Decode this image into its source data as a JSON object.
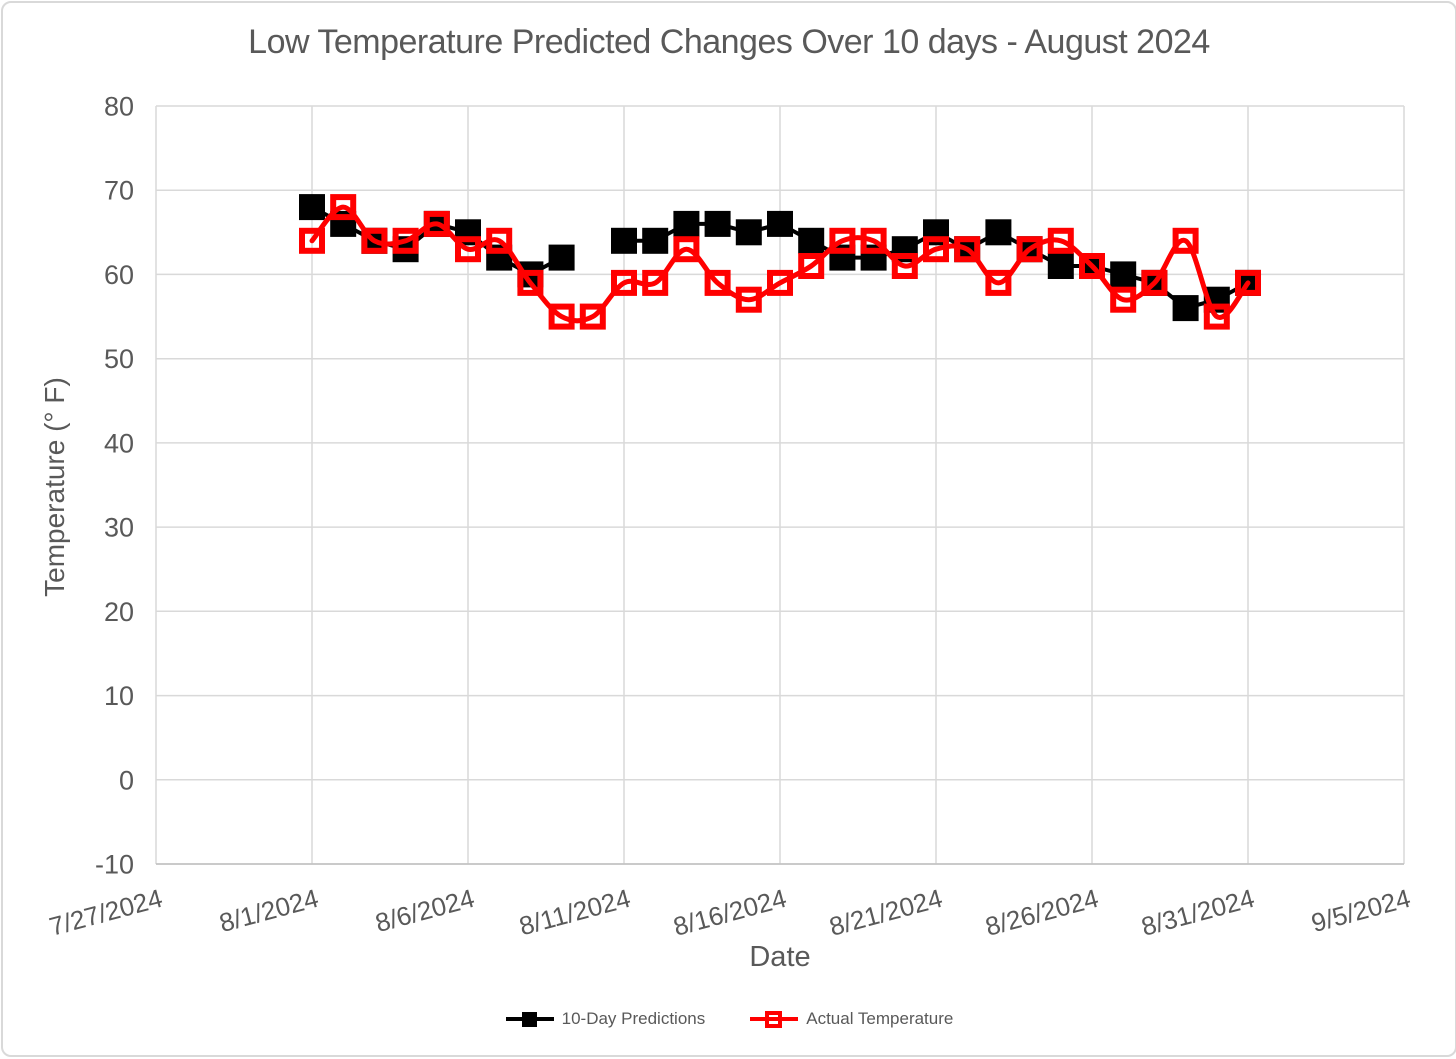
{
  "colors": {
    "background": "#FFFFFF",
    "frame_border": "#D9D9D9",
    "text": "#595959",
    "gridline": "#D9D9D9",
    "axis_line": "#BFBFBF",
    "series_predictions": "#000000",
    "series_actual": "#FF0000"
  },
  "chart_data": {
    "type": "line",
    "title": "Low Temperature Predicted Changes Over 10 days - August 2024",
    "xlabel": "Date",
    "ylabel": "Temperature (° F)",
    "grid": true,
    "legend_position": "bottom",
    "ylim": [
      -10,
      80
    ],
    "y_ticks": [
      80,
      70,
      60,
      50,
      40,
      30,
      20,
      10,
      0,
      -10
    ],
    "x_min": "7/27/2024",
    "x_max": "9/5/2024",
    "x_tick_labels": [
      "7/27/2024",
      "8/1/2024",
      "8/6/2024",
      "8/11/2024",
      "8/16/2024",
      "8/21/2024",
      "8/26/2024",
      "8/31/2024",
      "9/5/2024"
    ],
    "series": [
      {
        "name": "10-Day Predictions",
        "color": "#000000",
        "marker": "filled-square",
        "smooth": false,
        "points": [
          {
            "date": "8/1/2024",
            "value": 68
          },
          {
            "date": "8/2/2024",
            "value": 66
          },
          {
            "date": "8/3/2024",
            "value": 64
          },
          {
            "date": "8/4/2024",
            "value": 63
          },
          {
            "date": "8/5/2024",
            "value": 66
          },
          {
            "date": "8/6/2024",
            "value": 65
          },
          {
            "date": "8/7/2024",
            "value": 62
          },
          {
            "date": "8/8/2024",
            "value": 60
          },
          {
            "date": "8/9/2024",
            "value": 62
          },
          {
            "date": "8/11/2024",
            "value": 64
          },
          {
            "date": "8/12/2024",
            "value": 64
          },
          {
            "date": "8/13/2024",
            "value": 66
          },
          {
            "date": "8/14/2024",
            "value": 66
          },
          {
            "date": "8/15/2024",
            "value": 65
          },
          {
            "date": "8/16/2024",
            "value": 66
          },
          {
            "date": "8/17/2024",
            "value": 64
          },
          {
            "date": "8/18/2024",
            "value": 62
          },
          {
            "date": "8/19/2024",
            "value": 62
          },
          {
            "date": "8/20/2024",
            "value": 63
          },
          {
            "date": "8/21/2024",
            "value": 65
          },
          {
            "date": "8/22/2024",
            "value": 63
          },
          {
            "date": "8/23/2024",
            "value": 65
          },
          {
            "date": "8/24/2024",
            "value": 63
          },
          {
            "date": "8/25/2024",
            "value": 61
          },
          {
            "date": "8/26/2024",
            "value": 61
          },
          {
            "date": "8/27/2024",
            "value": 60
          },
          {
            "date": "8/28/2024",
            "value": 59
          },
          {
            "date": "8/29/2024",
            "value": 56
          },
          {
            "date": "8/30/2024",
            "value": 57
          },
          {
            "date": "8/31/2024",
            "value": 59
          }
        ]
      },
      {
        "name": "Actual Temperature",
        "color": "#FF0000",
        "marker": "open-square",
        "smooth": true,
        "points": [
          {
            "date": "8/1/2024",
            "value": 64
          },
          {
            "date": "8/2/2024",
            "value": 68
          },
          {
            "date": "8/3/2024",
            "value": 64
          },
          {
            "date": "8/4/2024",
            "value": 64
          },
          {
            "date": "8/5/2024",
            "value": 66
          },
          {
            "date": "8/6/2024",
            "value": 63
          },
          {
            "date": "8/7/2024",
            "value": 64
          },
          {
            "date": "8/8/2024",
            "value": 59
          },
          {
            "date": "8/9/2024",
            "value": 55
          },
          {
            "date": "8/10/2024",
            "value": 55
          },
          {
            "date": "8/11/2024",
            "value": 59
          },
          {
            "date": "8/12/2024",
            "value": 59
          },
          {
            "date": "8/13/2024",
            "value": 63
          },
          {
            "date": "8/14/2024",
            "value": 59
          },
          {
            "date": "8/15/2024",
            "value": 57
          },
          {
            "date": "8/16/2024",
            "value": 59
          },
          {
            "date": "8/17/2024",
            "value": 61
          },
          {
            "date": "8/18/2024",
            "value": 64
          },
          {
            "date": "8/19/2024",
            "value": 64
          },
          {
            "date": "8/20/2024",
            "value": 61
          },
          {
            "date": "8/21/2024",
            "value": 63
          },
          {
            "date": "8/22/2024",
            "value": 63
          },
          {
            "date": "8/23/2024",
            "value": 59
          },
          {
            "date": "8/24/2024",
            "value": 63
          },
          {
            "date": "8/25/2024",
            "value": 64
          },
          {
            "date": "8/26/2024",
            "value": 61
          },
          {
            "date": "8/27/2024",
            "value": 57
          },
          {
            "date": "8/28/2024",
            "value": 59
          },
          {
            "date": "8/29/2024",
            "value": 64
          },
          {
            "date": "8/30/2024",
            "value": 55
          },
          {
            "date": "8/31/2024",
            "value": 59
          }
        ]
      }
    ]
  }
}
